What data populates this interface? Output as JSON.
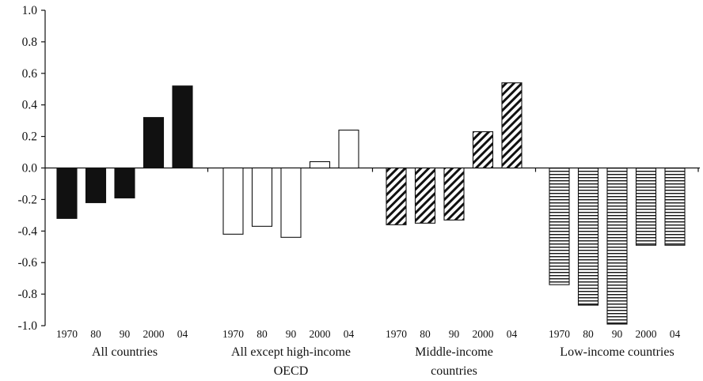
{
  "chart_data": {
    "type": "bar",
    "title": "",
    "xlabel": "",
    "ylabel": "",
    "ylim": [
      -1.0,
      1.0
    ],
    "y_ticks": [
      "1.0",
      "0.8",
      "0.6",
      "0.4",
      "0.2",
      "0.0",
      "-0.2",
      "-0.4",
      "-0.6",
      "-0.8",
      "-1.0"
    ],
    "categories": [
      "1970",
      "80",
      "90",
      "2000",
      "04"
    ],
    "grid": false,
    "legend": "none",
    "groups": [
      {
        "label_lines": [
          "All countries"
        ],
        "fill": "solid-black",
        "values": [
          -0.32,
          -0.22,
          -0.19,
          0.32,
          0.52
        ]
      },
      {
        "label_lines": [
          "All except high-income",
          "OECD"
        ],
        "fill": "white",
        "values": [
          -0.42,
          -0.37,
          -0.44,
          0.04,
          0.24
        ]
      },
      {
        "label_lines": [
          "Middle-income",
          "countries"
        ],
        "fill": "diagonal-hatch",
        "values": [
          -0.36,
          -0.35,
          -0.33,
          0.23,
          0.54
        ]
      },
      {
        "label_lines": [
          "Low-income countries"
        ],
        "fill": "horizontal-hatch",
        "values": [
          -0.74,
          -0.87,
          -0.99,
          -0.49,
          -0.49
        ]
      }
    ]
  }
}
